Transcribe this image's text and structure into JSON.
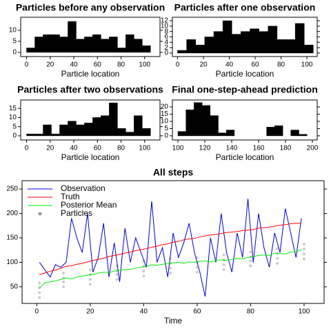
{
  "chart_data": [
    {
      "type": "histogram",
      "title": "Particles before any observation",
      "x_label": "Particle location",
      "color": "#000000",
      "bins": [
        0,
        7,
        14,
        21,
        28,
        35,
        42,
        49,
        56,
        63,
        70,
        77,
        84,
        91,
        98,
        105
      ],
      "values": [
        2,
        7,
        8,
        8,
        7,
        14,
        6,
        7,
        8,
        6,
        7,
        2,
        8,
        6,
        3
      ],
      "xlim": [
        -5,
        113
      ],
      "ylim": [
        -1.9,
        15.9
      ],
      "xticks": [
        0,
        20,
        40,
        60,
        80,
        100
      ],
      "yticks": [
        0,
        5,
        10
      ]
    },
    {
      "type": "histogram",
      "title": "Particles after one observation",
      "x_label": "Particle location",
      "color": "#000000",
      "bins": [
        0,
        7,
        14,
        21,
        28,
        35,
        42,
        49,
        56,
        63,
        70,
        77,
        84,
        91,
        98,
        105
      ],
      "values": [
        1,
        5,
        3,
        6,
        8,
        12,
        7,
        8,
        9,
        8,
        10,
        5,
        5,
        11,
        3
      ],
      "xlim": [
        -4,
        108
      ],
      "ylim": [
        -1.3,
        13.3
      ],
      "xticks": [
        0,
        20,
        40,
        60,
        80,
        100
      ],
      "yticks": [
        0,
        2,
        4,
        6,
        8,
        10,
        12
      ]
    },
    {
      "type": "histogram",
      "title": "Particles after two observations",
      "x_label": "Particle location",
      "color": "#000000",
      "bins": [
        0,
        7,
        14,
        21,
        28,
        35,
        42,
        49,
        56,
        63,
        70,
        77,
        84,
        91,
        98,
        105
      ],
      "values": [
        1,
        1,
        6,
        1,
        6,
        8,
        6,
        7,
        10,
        11,
        18,
        4,
        2,
        11,
        4
      ],
      "xlim": [
        -5,
        113
      ],
      "ylim": [
        -2.3,
        19.6
      ],
      "xticks": [
        0,
        20,
        40,
        60,
        80,
        100
      ],
      "yticks": [
        0,
        5,
        10,
        15
      ]
    },
    {
      "type": "histogram",
      "title": "Final one-step-ahead prediction",
      "x_label": "Particle location",
      "color": "#000000",
      "bins": [
        100,
        106,
        112,
        118,
        124,
        130,
        136,
        142,
        148,
        154,
        160,
        166,
        172,
        178,
        184,
        190,
        196
      ],
      "values": [
        3,
        18,
        23,
        21,
        14,
        2,
        4,
        0,
        0,
        0,
        0,
        6,
        7,
        0,
        4,
        1
      ],
      "xlim": [
        95.9,
        203.6
      ],
      "ylim": [
        -2.9,
        24.8
      ],
      "xticks": [
        100,
        120,
        140,
        160,
        180,
        200
      ],
      "yticks": [
        0,
        5,
        10,
        15,
        20
      ]
    },
    {
      "type": "line",
      "title": "All steps",
      "x_label": "Time",
      "legend": "top-left",
      "x": [
        1,
        3,
        5,
        7,
        9,
        11,
        13,
        15,
        17,
        19,
        21,
        23,
        25,
        27,
        29,
        31,
        33,
        35,
        37,
        39,
        41,
        43,
        45,
        47,
        49,
        51,
        53,
        55,
        57,
        59,
        61,
        63,
        65,
        67,
        69,
        71,
        73,
        75,
        77,
        79,
        81,
        83,
        85,
        87,
        89,
        91,
        93,
        95,
        97,
        99
      ],
      "xlim": [
        -5.5,
        107.5
      ],
      "ylim": [
        16,
        267
      ],
      "xticks": [
        0,
        20,
        40,
        60,
        80,
        100
      ],
      "yticks": [
        50,
        100,
        150,
        200,
        250
      ],
      "series": [
        {
          "name": "Observation",
          "color": "#0000cc",
          "values": [
            100,
            85,
            70,
            95,
            90,
            100,
            190,
            150,
            120,
            200,
            80,
            110,
            180,
            70,
            140,
            60,
            170,
            100,
            150,
            120,
            90,
            225,
            100,
            130,
            70,
            160,
            110,
            140,
            180,
            120,
            80,
            30,
            150,
            100,
            200,
            120,
            80,
            160,
            110,
            230,
            100,
            200,
            130,
            90,
            160,
            120,
            210,
            160,
            110,
            190
          ]
        },
        {
          "name": "Truth",
          "color": "#ff0000",
          "values": [
            75,
            78,
            82,
            84,
            88,
            92,
            93,
            96,
            98,
            101,
            104,
            106,
            108,
            112,
            114,
            116,
            119,
            121,
            124,
            126,
            128,
            131,
            133,
            136,
            138,
            141,
            143,
            146,
            148,
            149,
            152,
            154,
            156,
            157,
            159,
            161,
            162,
            163,
            165,
            166,
            167,
            170,
            171,
            172,
            174,
            176,
            177,
            179,
            180,
            180
          ]
        },
        {
          "name": "Posterior Mean",
          "color": "#00ee00",
          "values": [
            48,
            58,
            60,
            62,
            65,
            68,
            66,
            70,
            72,
            74,
            75,
            78,
            80,
            79,
            82,
            84,
            85,
            86,
            88,
            90,
            92,
            95,
            94,
            96,
            97,
            99,
            100,
            98,
            101,
            100,
            102,
            103,
            101,
            104,
            105,
            104,
            106,
            108,
            107,
            110,
            112,
            114,
            115,
            114,
            119,
            118,
            117,
            121,
            122,
            126
          ]
        },
        {
          "name": "Particles",
          "type": "scatter",
          "color": "#999999",
          "x": [
            1,
            10,
            20,
            30,
            40,
            50,
            60,
            70,
            80,
            90,
            100
          ],
          "values": [
            [
              28,
              38,
              48,
              58
            ],
            [
              50,
              60,
              68,
              78
            ],
            [
              55,
              65,
              75,
              85
            ],
            [
              65,
              75,
              83,
              93
            ],
            [
              72,
              82,
              92,
              102
            ],
            [
              78,
              88,
              98,
              108
            ],
            [
              80,
              90,
              100,
              110
            ],
            [
              85,
              95,
              105,
              115
            ],
            [
              93,
              103,
              111,
              121
            ],
            [
              98,
              108,
              118,
              128
            ],
            [
              107,
              117,
              127,
              137
            ]
          ]
        }
      ]
    }
  ]
}
